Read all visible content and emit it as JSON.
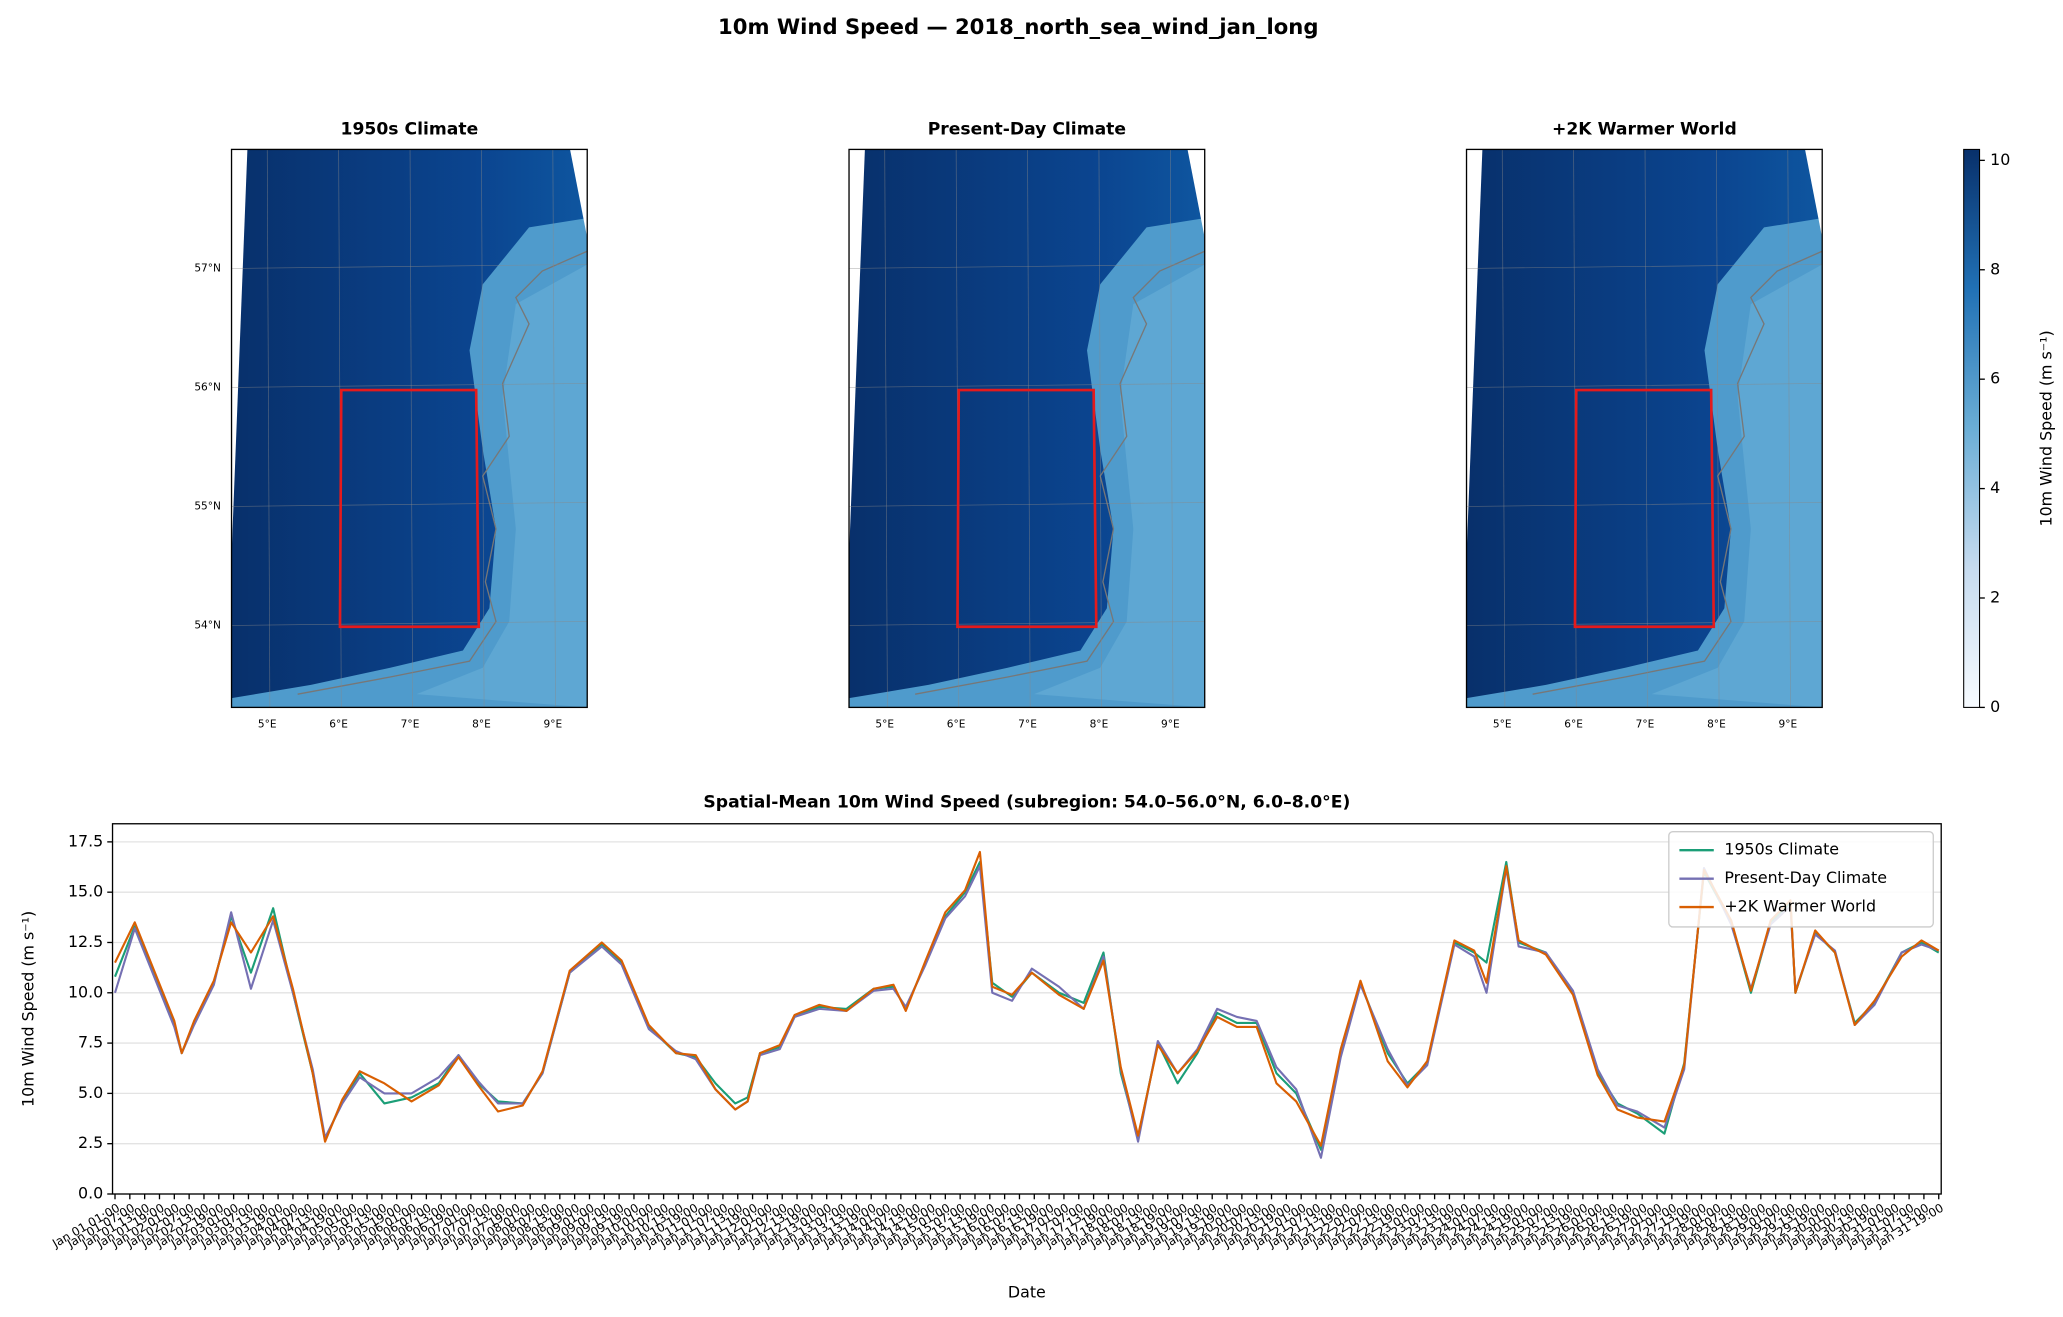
{
  "title": "10m Wind Speed — 2018_north_sea_wind_jan_long",
  "maps": [
    {
      "title": "1950s Climate"
    },
    {
      "title": "Present-Day Climate"
    },
    {
      "title": "+2K Warmer World"
    }
  ],
  "lat_labels": [
    "57°N",
    "56°N",
    "55°N",
    "54°N"
  ],
  "lon_labels": [
    "5°E",
    "6°E",
    "7°E",
    "8°E",
    "9°E"
  ],
  "colorbar": {
    "label": "10m Wind Speed (m s⁻¹)",
    "lim": [
      0,
      10.2
    ],
    "ticks": [
      0,
      2,
      4,
      6,
      8,
      10
    ]
  },
  "chart_data": {
    "type": "line",
    "title": "Spatial-Mean 10m Wind Speed (subregion: 54.0–56.0°N, 6.0–8.0°E)",
    "xlabel": "Date",
    "ylabel": "10m Wind Speed (m s⁻¹)",
    "x": [
      0,
      8,
      24,
      27,
      32,
      40,
      47,
      55,
      64,
      72,
      80,
      85,
      92,
      99,
      109,
      120,
      131,
      139,
      147,
      155,
      165,
      173,
      184,
      197,
      205,
      216,
      227,
      235,
      243,
      251,
      256,
      261,
      269,
      275,
      285,
      296,
      307,
      315,
      320,
      328,
      336,
      344,
      350,
      355,
      363,
      371,
      382,
      392,
      400,
      407,
      414,
      422,
      430,
      438,
      446,
      454,
      462,
      470,
      478,
      488,
      496,
      504,
      515,
      523,
      531,
      542,
      550,
      555,
      563,
      568,
      579,
      590,
      600,
      608,
      616,
      627,
      635,
      643,
      654,
      662,
      670,
      678,
      680,
      688,
      696,
      704,
      712,
      723,
      731,
      738
    ],
    "series": [
      {
        "name": "1950s Climate",
        "color": "#1b9e77",
        "values": [
          10.8,
          13.3,
          8.5,
          7,
          8.5,
          10.5,
          13.8,
          11,
          14.2,
          10,
          6,
          2.7,
          4.6,
          6,
          4.5,
          4.8,
          5.5,
          6.9,
          5.5,
          4.6,
          4.5,
          6,
          11,
          12.4,
          11.5,
          8.3,
          7,
          6.8,
          5.5,
          4.5,
          4.8,
          7,
          7.3,
          8.8,
          9.3,
          9.2,
          10.2,
          10.3,
          9.2,
          11.5,
          13.8,
          15,
          16.5,
          10.5,
          9.8,
          11,
          10,
          9.5,
          12,
          6,
          2.8,
          7.5,
          5.5,
          7,
          9,
          8.5,
          8.5,
          6,
          5,
          2.2,
          7,
          10.5,
          7,
          5.5,
          6.5,
          12.5,
          12,
          11.5,
          16.5,
          12.5,
          12,
          10,
          6,
          4.5,
          4,
          3,
          6.5,
          16,
          13.5,
          10,
          13.5,
          14.5,
          10,
          13,
          12,
          8.5,
          9.5,
          12,
          12.5,
          12
        ]
      },
      {
        "name": "Present-Day Climate",
        "color": "#7570b3",
        "values": [
          10,
          13.2,
          8.3,
          7,
          8.4,
          10.4,
          14,
          10.2,
          13.6,
          10,
          6.2,
          2.8,
          4.5,
          5.8,
          5,
          5,
          5.8,
          6.9,
          5.6,
          4.5,
          4.5,
          6,
          11,
          12.3,
          11.4,
          8.2,
          7.1,
          6.7,
          5.2,
          4.2,
          4.6,
          6.9,
          7.2,
          8.8,
          9.2,
          9.1,
          10.1,
          10.2,
          9.3,
          11.4,
          13.7,
          14.8,
          16.3,
          10,
          9.6,
          11.2,
          10.3,
          9.2,
          11.8,
          6.2,
          2.6,
          7.6,
          6,
          7.2,
          9.2,
          8.8,
          8.6,
          6.3,
          5.2,
          1.8,
          6.8,
          10.4,
          7.2,
          5.4,
          6.4,
          12.4,
          11.8,
          10,
          16.2,
          12.3,
          12,
          10.1,
          6.2,
          4.4,
          4.1,
          3.3,
          6.2,
          16.2,
          13.4,
          10.2,
          13.4,
          14.3,
          10.1,
          12.9,
          12.1,
          8.4,
          9.4,
          12,
          12.4,
          12.1
        ]
      },
      {
        "name": "+2K Warmer World",
        "color": "#d95f02",
        "values": [
          11.5,
          13.5,
          8.6,
          7,
          8.6,
          10.6,
          13.5,
          12,
          13.8,
          10.2,
          6,
          2.6,
          4.7,
          6.1,
          5.5,
          4.6,
          5.4,
          6.8,
          5.4,
          4.1,
          4.4,
          6.1,
          11.1,
          12.5,
          11.6,
          8.4,
          7,
          6.9,
          5.2,
          4.2,
          4.6,
          7,
          7.4,
          8.9,
          9.4,
          9.1,
          10.2,
          10.4,
          9.1,
          11.6,
          14,
          15.1,
          17,
          10.3,
          9.9,
          11,
          9.9,
          9.2,
          11.6,
          6.3,
          2.9,
          7.4,
          6,
          7.1,
          8.8,
          8.3,
          8.3,
          5.5,
          4.6,
          2.4,
          7.2,
          10.6,
          6.6,
          5.3,
          6.6,
          12.6,
          12.1,
          10.5,
          16.3,
          12.6,
          11.9,
          9.9,
          5.9,
          4.2,
          3.8,
          3.6,
          6.4,
          16.1,
          13.6,
          10.1,
          13.6,
          14.6,
          10,
          13.1,
          12,
          8.4,
          9.6,
          11.8,
          12.6,
          12.1
        ]
      }
    ],
    "xlim": [
      -1,
      739
    ],
    "ylim": [
      0,
      18.4
    ],
    "yticks": [
      {
        "value": 0,
        "label": "0.0"
      },
      2.5,
      {
        "value": 5,
        "label": "5.0"
      },
      7.5,
      {
        "value": 10,
        "label": "10.0"
      },
      12.5,
      {
        "value": 15,
        "label": "15.0"
      },
      17.5
    ],
    "xticks": [
      {
        "value": 0,
        "label": "Jan 01 01:00"
      },
      {
        "value": 6,
        "label": "Jan 01 07:00"
      },
      {
        "value": 12,
        "label": "Jan 01 13:00"
      },
      {
        "value": 18,
        "label": "Jan 01 19:00"
      },
      {
        "value": 24,
        "label": "Jan 02 01:00"
      },
      {
        "value": 30,
        "label": "Jan 02 07:00"
      },
      {
        "value": 36,
        "label": "Jan 02 13:00"
      },
      {
        "value": 42,
        "label": "Jan 02 19:00"
      },
      {
        "value": 48,
        "label": "Jan 03 01:00"
      },
      {
        "value": 54,
        "label": "Jan 03 07:00"
      },
      {
        "value": 60,
        "label": "Jan 03 13:00"
      },
      {
        "value": 66,
        "label": "Jan 03 19:00"
      },
      {
        "value": 72,
        "label": "Jan 04 01:00"
      },
      {
        "value": 78,
        "label": "Jan 04 07:00"
      },
      {
        "value": 84,
        "label": "Jan 04 13:00"
      },
      {
        "value": 90,
        "label": "Jan 04 19:00"
      },
      {
        "value": 96,
        "label": "Jan 05 01:00"
      },
      {
        "value": 102,
        "label": "Jan 05 07:00"
      },
      {
        "value": 108,
        "label": "Jan 05 13:00"
      },
      {
        "value": 114,
        "label": "Jan 05 19:00"
      },
      {
        "value": 120,
        "label": "Jan 06 01:00"
      },
      {
        "value": 126,
        "label": "Jan 06 07:00"
      },
      {
        "value": 132,
        "label": "Jan 06 13:00"
      },
      {
        "value": 138,
        "label": "Jan 06 19:00"
      },
      {
        "value": 144,
        "label": "Jan 07 01:00"
      },
      {
        "value": 150,
        "label": "Jan 07 07:00"
      },
      {
        "value": 156,
        "label": "Jan 07 13:00"
      },
      {
        "value": 162,
        "label": "Jan 07 19:00"
      },
      {
        "value": 168,
        "label": "Jan 08 01:00"
      },
      {
        "value": 174,
        "label": "Jan 08 07:00"
      },
      {
        "value": 180,
        "label": "Jan 08 13:00"
      },
      {
        "value": 186,
        "label": "Jan 08 19:00"
      },
      {
        "value": 192,
        "label": "Jan 09 01:00"
      },
      {
        "value": 198,
        "label": "Jan 09 07:00"
      },
      {
        "value": 204,
        "label": "Jan 09 13:00"
      },
      {
        "value": 210,
        "label": "Jan 09 19:00"
      },
      {
        "value": 216,
        "label": "Jan 10 01:00"
      },
      {
        "value": 222,
        "label": "Jan 10 07:00"
      },
      {
        "value": 228,
        "label": "Jan 10 13:00"
      },
      {
        "value": 234,
        "label": "Jan 10 19:00"
      },
      {
        "value": 240,
        "label": "Jan 11 01:00"
      },
      {
        "value": 246,
        "label": "Jan 11 07:00"
      },
      {
        "value": 252,
        "label": "Jan 11 13:00"
      },
      {
        "value": 258,
        "label": "Jan 11 19:00"
      },
      {
        "value": 264,
        "label": "Jan 12 01:00"
      },
      {
        "value": 270,
        "label": "Jan 12 07:00"
      },
      {
        "value": 276,
        "label": "Jan 12 13:00"
      },
      {
        "value": 282,
        "label": "Jan 12 19:00"
      },
      {
        "value": 288,
        "label": "Jan 13 01:00"
      },
      {
        "value": 294,
        "label": "Jan 13 07:00"
      },
      {
        "value": 300,
        "label": "Jan 13 13:00"
      },
      {
        "value": 306,
        "label": "Jan 13 19:00"
      },
      {
        "value": 312,
        "label": "Jan 14 01:00"
      },
      {
        "value": 318,
        "label": "Jan 14 07:00"
      },
      {
        "value": 324,
        "label": "Jan 14 13:00"
      },
      {
        "value": 330,
        "label": "Jan 14 19:00"
      },
      {
        "value": 336,
        "label": "Jan 15 01:00"
      },
      {
        "value": 342,
        "label": "Jan 15 07:00"
      },
      {
        "value": 348,
        "label": "Jan 15 13:00"
      },
      {
        "value": 354,
        "label": "Jan 15 19:00"
      },
      {
        "value": 360,
        "label": "Jan 16 01:00"
      },
      {
        "value": 366,
        "label": "Jan 16 07:00"
      },
      {
        "value": 372,
        "label": "Jan 16 13:00"
      },
      {
        "value": 378,
        "label": "Jan 16 19:00"
      },
      {
        "value": 384,
        "label": "Jan 17 01:00"
      },
      {
        "value": 390,
        "label": "Jan 17 07:00"
      },
      {
        "value": 396,
        "label": "Jan 17 13:00"
      },
      {
        "value": 402,
        "label": "Jan 17 19:00"
      },
      {
        "value": 408,
        "label": "Jan 18 01:00"
      },
      {
        "value": 414,
        "label": "Jan 18 07:00"
      },
      {
        "value": 420,
        "label": "Jan 18 13:00"
      },
      {
        "value": 426,
        "label": "Jan 18 19:00"
      },
      {
        "value": 432,
        "label": "Jan 19 01:00"
      },
      {
        "value": 438,
        "label": "Jan 19 07:00"
      },
      {
        "value": 444,
        "label": "Jan 19 13:00"
      },
      {
        "value": 450,
        "label": "Jan 19 19:00"
      },
      {
        "value": 456,
        "label": "Jan 20 01:00"
      },
      {
        "value": 462,
        "label": "Jan 20 07:00"
      },
      {
        "value": 468,
        "label": "Jan 20 13:00"
      },
      {
        "value": 474,
        "label": "Jan 20 19:00"
      },
      {
        "value": 480,
        "label": "Jan 21 01:00"
      },
      {
        "value": 486,
        "label": "Jan 21 07:00"
      },
      {
        "value": 492,
        "label": "Jan 21 13:00"
      },
      {
        "value": 498,
        "label": "Jan 21 19:00"
      },
      {
        "value": 504,
        "label": "Jan 22 01:00"
      },
      {
        "value": 510,
        "label": "Jan 22 07:00"
      },
      {
        "value": 516,
        "label": "Jan 22 13:00"
      },
      {
        "value": 522,
        "label": "Jan 22 19:00"
      },
      {
        "value": 528,
        "label": "Jan 23 01:00"
      },
      {
        "value": 534,
        "label": "Jan 23 07:00"
      },
      {
        "value": 540,
        "label": "Jan 23 13:00"
      },
      {
        "value": 546,
        "label": "Jan 23 19:00"
      },
      {
        "value": 552,
        "label": "Jan 24 01:00"
      },
      {
        "value": 558,
        "label": "Jan 24 07:00"
      },
      {
        "value": 564,
        "label": "Jan 24 13:00"
      },
      {
        "value": 570,
        "label": "Jan 24 19:00"
      },
      {
        "value": 576,
        "label": "Jan 25 01:00"
      },
      {
        "value": 582,
        "label": "Jan 25 07:00"
      },
      {
        "value": 588,
        "label": "Jan 25 13:00"
      },
      {
        "value": 594,
        "label": "Jan 25 19:00"
      },
      {
        "value": 600,
        "label": "Jan 26 01:00"
      },
      {
        "value": 606,
        "label": "Jan 26 07:00"
      },
      {
        "value": 612,
        "label": "Jan 26 13:00"
      },
      {
        "value": 618,
        "label": "Jan 26 19:00"
      },
      {
        "value": 624,
        "label": "Jan 27 01:00"
      },
      {
        "value": 630,
        "label": "Jan 27 07:00"
      },
      {
        "value": 636,
        "label": "Jan 27 13:00"
      },
      {
        "value": 642,
        "label": "Jan 27 19:00"
      },
      {
        "value": 648,
        "label": "Jan 28 01:00"
      },
      {
        "value": 654,
        "label": "Jan 28 07:00"
      },
      {
        "value": 660,
        "label": "Jan 28 13:00"
      },
      {
        "value": 666,
        "label": "Jan 28 19:00"
      },
      {
        "value": 672,
        "label": "Jan 29 01:00"
      },
      {
        "value": 678,
        "label": "Jan 29 07:00"
      },
      {
        "value": 684,
        "label": "Jan 29 13:00"
      },
      {
        "value": 690,
        "label": "Jan 29 19:00"
      },
      {
        "value": 696,
        "label": "Jan 30 01:00"
      },
      {
        "value": 702,
        "label": "Jan 30 07:00"
      },
      {
        "value": 708,
        "label": "Jan 30 13:00"
      },
      {
        "value": 714,
        "label": "Jan 30 19:00"
      },
      {
        "value": 720,
        "label": "Jan 31 01:00"
      },
      {
        "value": 726,
        "label": "Jan 31 07:00"
      },
      {
        "value": 732,
        "label": "Jan 31 13:00"
      },
      {
        "value": 738,
        "label": "Jan 31 19:00"
      }
    ],
    "grid": "y",
    "legend": "upper right"
  }
}
